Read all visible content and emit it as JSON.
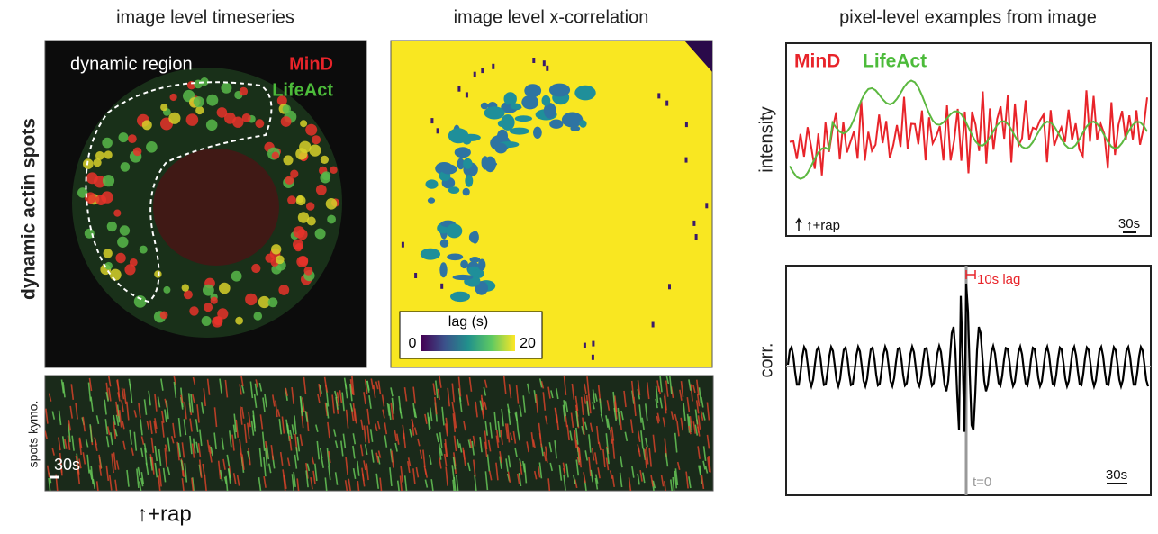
{
  "panels": {
    "timeseries": {
      "title": "image level timeseries",
      "row_label": "dynamic actin spots",
      "region_label": "dynamic region",
      "channels": [
        "MinD",
        "LifeAct"
      ]
    },
    "xcorr": {
      "title": "image level x-correlation",
      "colorbar": {
        "label": "lag (s)",
        "min": "0",
        "max": "20"
      }
    },
    "kymograph": {
      "label": "spots kymo.",
      "scale": "30s",
      "marker": "↑+rap"
    },
    "pixel": {
      "title": "pixel-level examples from image",
      "intensity": {
        "ylabel": "intensity",
        "legend": [
          "MinD",
          "LifeAct"
        ],
        "marker": "↑+rap",
        "scale": "30s"
      },
      "corr": {
        "ylabel": "corr.",
        "lag_label": "10s lag",
        "zero_label": "t=0",
        "scale": "30s"
      }
    }
  }
}
